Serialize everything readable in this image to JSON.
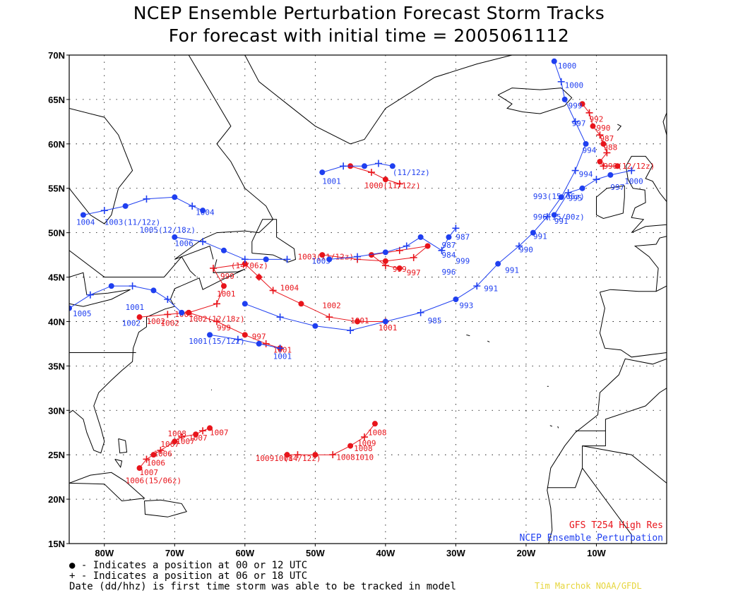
{
  "title": "NCEP Ensemble Perturbation Forecast Storm Tracks",
  "subtitle": "For forecast with initial time = 2005061112",
  "model_label": "GFS T254 High Res",
  "ensemble_label": "NCEP Ensemble Perturbation",
  "legend": {
    "dot": "● - Indicates a position at 00 or 12 UTC",
    "plus": "+ - Indicates a position at 06 or 18 UTC",
    "date": "Date (dd/hhz) is first time storm was able to be tracked in model"
  },
  "credit": "Tim Marchok NOAA/GFDL",
  "colors": {
    "high_res": "#e8141b",
    "ensemble": "#1f3ff0",
    "credit": "#e6d53a",
    "grid": "#000000"
  },
  "chart_data": {
    "type": "map",
    "lat_labels": [
      "70N",
      "65N",
      "60N",
      "55N",
      "50N",
      "45N",
      "40N",
      "35N",
      "30N",
      "25N",
      "20N",
      "15N"
    ],
    "lon_labels": [
      "80W",
      "70W",
      "60W",
      "50W",
      "40W",
      "30W",
      "20W",
      "10W"
    ],
    "lat_range": [
      15,
      70
    ],
    "lon_range": [
      -85,
      0
    ],
    "tracks": [
      {
        "color": "red",
        "points": [
          [
            -75,
            23.5
          ],
          [
            -74,
            24.5
          ],
          [
            -73,
            25
          ],
          [
            -72,
            25.5
          ],
          [
            -70,
            26.5
          ],
          [
            -69,
            27
          ],
          [
            -67,
            27.3
          ],
          [
            -66,
            27.7
          ],
          [
            -65,
            28
          ]
        ],
        "labels": [
          {
            "at": [
              -77,
              21.8
            ],
            "text": "1006(15/06z)"
          },
          {
            "at": [
              -75,
              22.7
            ],
            "text": "1007"
          },
          {
            "at": [
              -74,
              23.8
            ],
            "text": "1006"
          },
          {
            "at": [
              -73,
              24.8
            ],
            "text": "1006"
          },
          {
            "at": [
              -72,
              25.9
            ],
            "text": "1007"
          },
          {
            "at": [
              -71,
              27.1
            ],
            "text": "1008"
          },
          {
            "at": [
              -69.8,
              26.2
            ],
            "text": "1007"
          },
          {
            "at": [
              -68,
              26.6
            ],
            "text": "1007"
          },
          {
            "at": [
              -65,
              27.2
            ],
            "text": "1007"
          }
        ]
      },
      {
        "color": "red",
        "points": [
          [
            -54,
            25
          ],
          [
            -52.5,
            25
          ],
          [
            -50,
            25
          ],
          [
            -47.5,
            25
          ],
          [
            -45,
            26
          ],
          [
            -43,
            27
          ],
          [
            -41.5,
            28.5
          ]
        ],
        "labels": [
          {
            "at": [
              -58.5,
              24.3
            ],
            "text": "10091008"
          },
          {
            "at": [
              -54.5,
              24.3
            ],
            "text": "(14/12z)"
          },
          {
            "at": [
              -47,
              24.4
            ],
            "text": "10081010"
          },
          {
            "at": [
              -44.5,
              25.4
            ],
            "text": "1008"
          },
          {
            "at": [
              -44,
              26
            ],
            "text": "1009"
          },
          {
            "at": [
              -42.5,
              27.2
            ],
            "text": "1008"
          }
        ]
      },
      {
        "color": "red",
        "points": [
          [
            -75,
            40.5
          ],
          [
            -71,
            40.8
          ],
          [
            -68,
            41
          ],
          [
            -64,
            42
          ],
          [
            -63,
            44
          ],
          [
            -64.5,
            46
          ],
          [
            -60,
            46.5
          ],
          [
            -58,
            45
          ]
        ],
        "labels": [
          {
            "at": [
              -74,
              39.7
            ],
            "text": "1002"
          },
          {
            "at": [
              -72,
              39.5
            ],
            "text": "1002"
          },
          {
            "at": [
              -70,
              40.5
            ],
            "text": "1001"
          },
          {
            "at": [
              -68,
              40
            ],
            "text": "1002(12/18z)"
          },
          {
            "at": [
              -64,
              42.8
            ],
            "text": "1001"
          },
          {
            "at": [
              -63.5,
              44.8
            ],
            "text": "999"
          },
          {
            "at": [
              -62,
              46
            ],
            "text": "(14/06z)"
          }
        ]
      },
      {
        "color": "red",
        "points": [
          [
            -68,
            41
          ],
          [
            -64,
            40
          ],
          [
            -60,
            38.5
          ],
          [
            -57,
            37.5
          ],
          [
            -55,
            37
          ]
        ],
        "labels": [
          {
            "at": [
              -64,
              39
            ],
            "text": "999"
          },
          {
            "at": [
              -59,
              38
            ],
            "text": "997"
          },
          {
            "at": [
              -56,
              36.5
            ],
            "text": "1001"
          }
        ]
      },
      {
        "color": "red",
        "points": [
          [
            -58,
            45
          ],
          [
            -56,
            43.5
          ],
          [
            -52,
            42
          ],
          [
            -48,
            40.5
          ],
          [
            -44,
            40
          ],
          [
            -40,
            40
          ]
        ],
        "labels": [
          {
            "at": [
              -55,
              43.5
            ],
            "text": "1004"
          },
          {
            "at": [
              -49,
              41.5
            ],
            "text": "1002"
          },
          {
            "at": [
              -45,
              39.8
            ],
            "text": "1001"
          },
          {
            "at": [
              -41,
              39
            ],
            "text": "1001"
          }
        ]
      },
      {
        "color": "red",
        "points": [
          [
            -49,
            47.5
          ],
          [
            -44,
            47
          ],
          [
            -40,
            46.8
          ],
          [
            -36,
            47.2
          ],
          [
            -34,
            48.5
          ],
          [
            -38,
            48
          ],
          [
            -42,
            47.5
          ],
          [
            -40,
            46.3
          ],
          [
            -38,
            46
          ]
        ],
        "labels": [
          {
            "at": [
              -52.5,
              47
            ],
            "text": "1003(11/12z)"
          },
          {
            "at": [
              -39,
              45.6
            ],
            "text": "999"
          },
          {
            "at": [
              -37,
              45.2
            ],
            "text": "997"
          }
        ]
      },
      {
        "color": "red",
        "points": [
          [
            -45,
            57.5
          ],
          [
            -42,
            56.8
          ],
          [
            -40,
            56
          ],
          [
            -38,
            55.5
          ]
        ],
        "labels": [
          {
            "at": [
              -43,
              55
            ],
            "text": "1000(11/12z)"
          }
        ]
      },
      {
        "color": "red",
        "points": [
          [
            -12,
            64.5
          ],
          [
            -11,
            63.5
          ],
          [
            -10.5,
            62
          ],
          [
            -9.5,
            61
          ],
          [
            -9,
            60
          ],
          [
            -8.5,
            59
          ],
          [
            -9.5,
            58
          ],
          [
            -9,
            57.5
          ],
          [
            -7,
            57.5
          ]
        ],
        "labels": [
          {
            "at": [
              -11,
              62.5
            ],
            "text": "992"
          },
          {
            "at": [
              -10,
              61.5
            ],
            "text": "990"
          },
          {
            "at": [
              -9.5,
              60.3
            ],
            "text": "987"
          },
          {
            "at": [
              -9,
              59.3
            ],
            "text": "988"
          },
          {
            "at": [
              -9,
              57.2
            ],
            "text": "990(12/12z)"
          }
        ]
      },
      {
        "color": "blue",
        "points": [
          [
            -85,
            41.5
          ],
          [
            -82,
            43
          ],
          [
            -79,
            44
          ],
          [
            -76,
            44
          ],
          [
            -73,
            43.5
          ],
          [
            -71,
            42.5
          ],
          [
            -69,
            41
          ]
        ],
        "labels": [
          {
            "at": [
              -84.5,
              40.6
            ],
            "text": "1005"
          },
          {
            "at": [
              -77.5,
              39.5
            ],
            "text": "1002"
          },
          {
            "at": [
              -77,
              41.3
            ],
            "text": "1001"
          }
        ]
      },
      {
        "color": "blue",
        "points": [
          [
            -83,
            52
          ],
          [
            -80,
            52.5
          ],
          [
            -77,
            53
          ],
          [
            -74,
            53.8
          ],
          [
            -70,
            54
          ],
          [
            -67.5,
            53
          ],
          [
            -66,
            52.5
          ]
        ],
        "labels": [
          {
            "at": [
              -84,
              50.9
            ],
            "text": "1004"
          },
          {
            "at": [
              -80,
              50.9
            ],
            "text": "1003(11/12z)"
          },
          {
            "at": [
              -75,
              50
            ],
            "text": "1005(12/18z)"
          },
          {
            "at": [
              -67,
              52
            ],
            "text": "1004"
          }
        ]
      },
      {
        "color": "blue",
        "points": [
          [
            -70,
            49.5
          ],
          [
            -66,
            49
          ],
          [
            -63,
            48
          ],
          [
            -60,
            47
          ],
          [
            -57,
            47
          ],
          [
            -54,
            47
          ]
        ],
        "labels": [
          {
            "at": [
              -70,
              48.5
            ],
            "text": "1006"
          }
        ]
      },
      {
        "color": "blue",
        "points": [
          [
            -65,
            38.5
          ],
          [
            -61,
            38
          ],
          [
            -58,
            37.5
          ],
          [
            -55,
            37
          ]
        ],
        "labels": [
          {
            "at": [
              -68,
              37.5
            ],
            "text": "1001(15/12z)"
          },
          {
            "at": [
              -56,
              35.8
            ],
            "text": "1001"
          }
        ]
      },
      {
        "color": "blue",
        "points": [
          [
            -60,
            42
          ],
          [
            -55,
            40.5
          ],
          [
            -50,
            39.5
          ],
          [
            -45,
            39
          ],
          [
            -40,
            40
          ],
          [
            -35,
            41
          ],
          [
            -30,
            42.5
          ],
          [
            -27,
            44
          ],
          [
            -24,
            46.5
          ],
          [
            -21,
            48.5
          ],
          [
            -19,
            50
          ],
          [
            -17,
            51.8
          ],
          [
            -15,
            54
          ],
          [
            -13,
            57
          ],
          [
            -11.5,
            60
          ],
          [
            -13,
            62.5
          ],
          [
            -14.5,
            65
          ],
          [
            -15,
            67
          ],
          [
            -16,
            69.3
          ]
        ],
        "labels": [
          {
            "at": [
              -34,
              39.8
            ],
            "text": "985"
          },
          {
            "at": [
              -29.5,
              41.5
            ],
            "text": "993"
          },
          {
            "at": [
              -26,
              43.4
            ],
            "text": "991"
          },
          {
            "at": [
              -23,
              45.5
            ],
            "text": "991"
          },
          {
            "at": [
              -21,
              47.8
            ],
            "text": "990"
          },
          {
            "at": [
              -19,
              49.3
            ],
            "text": "991"
          },
          {
            "at": [
              -16,
              51
            ],
            "text": "991"
          },
          {
            "at": [
              -14,
              53.6
            ],
            "text": "995"
          },
          {
            "at": [
              -12.5,
              56.3
            ],
            "text": "994"
          },
          {
            "at": [
              -12,
              59
            ],
            "text": "994"
          },
          {
            "at": [
              -13.5,
              62
            ],
            "text": "997"
          },
          {
            "at": [
              -14,
              64
            ],
            "text": "999"
          },
          {
            "at": [
              -14.5,
              66.3
            ],
            "text": "1000"
          },
          {
            "at": [
              -15.5,
              68.5
            ],
            "text": "1000"
          }
        ]
      },
      {
        "color": "blue",
        "points": [
          [
            -48,
            47
          ],
          [
            -44,
            47.3
          ],
          [
            -40,
            47.8
          ],
          [
            -37,
            48.5
          ],
          [
            -35,
            49.5
          ],
          [
            -32,
            48
          ],
          [
            -31,
            49.5
          ],
          [
            -30,
            50.5
          ]
        ],
        "labels": [
          {
            "at": [
              -50.5,
              46.5
            ],
            "text": "1005"
          },
          {
            "at": [
              -30,
              49.2
            ],
            "text": "987"
          },
          {
            "at": [
              -32,
              48.3
            ],
            "text": "987"
          },
          {
            "at": [
              -32,
              47.2
            ],
            "text": "984"
          },
          {
            "at": [
              -32,
              45.3
            ],
            "text": "996"
          },
          {
            "at": [
              -30,
              46.5
            ],
            "text": "999"
          }
        ]
      },
      {
        "color": "blue",
        "points": [
          [
            -49,
            56.8
          ],
          [
            -46,
            57.5
          ],
          [
            -43,
            57.5
          ],
          [
            -41,
            57.8
          ],
          [
            -39,
            57.5
          ]
        ],
        "labels": [
          {
            "at": [
              -49,
              55.5
            ],
            "text": "1001"
          },
          {
            "at": [
              -39,
              56.5
            ],
            "text": "(11/12z)"
          }
        ]
      },
      {
        "color": "blue",
        "points": [
          [
            -16,
            52
          ],
          [
            -14,
            54.5
          ],
          [
            -12,
            55
          ],
          [
            -10,
            56
          ],
          [
            -8,
            56.5
          ],
          [
            -5,
            57
          ]
        ],
        "labels": [
          {
            "at": [
              -19,
              53.8
            ],
            "text": "993(15/06z)"
          },
          {
            "at": [
              -19,
              51.5
            ],
            "text": "996(15/00z)"
          },
          {
            "at": [
              -8,
              54.8
            ],
            "text": "997"
          },
          {
            "at": [
              -6,
              55.5
            ],
            "text": "1000"
          }
        ]
      }
    ]
  }
}
